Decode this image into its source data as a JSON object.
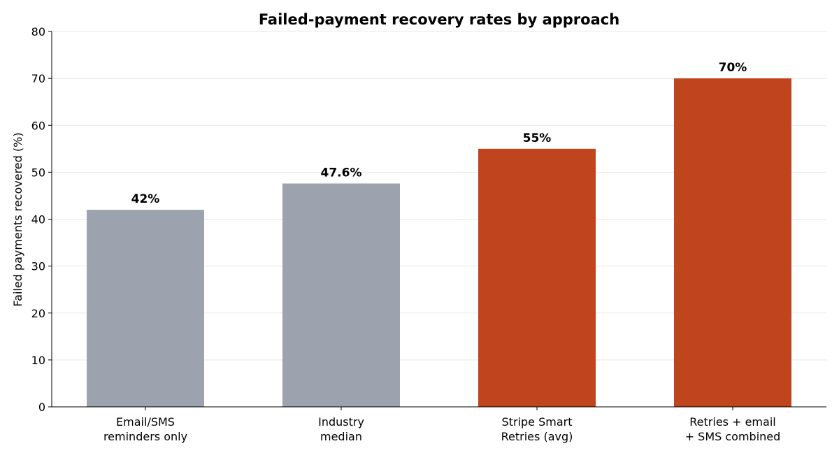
{
  "chart_data": {
    "type": "bar",
    "title": "Failed-payment recovery rates by approach",
    "y_label": "Failed payments recovered (%)",
    "categories": [
      "Email/SMS\nreminders only",
      "Industry\nmedian",
      "Stripe Smart\nRetries (avg)",
      "Retries + email\n+ SMS combined"
    ],
    "values": [
      42,
      47.6,
      55,
      70
    ],
    "value_labels": [
      "42%",
      "47.6%",
      "55%",
      "70%"
    ],
    "colors": [
      "#9ca3af",
      "#9ca3af",
      "#c0451e",
      "#c0451e"
    ],
    "ylim": [
      0,
      80
    ],
    "yticks": [
      0,
      10,
      20,
      30,
      40,
      50,
      60,
      70,
      80
    ],
    "grid": true
  }
}
